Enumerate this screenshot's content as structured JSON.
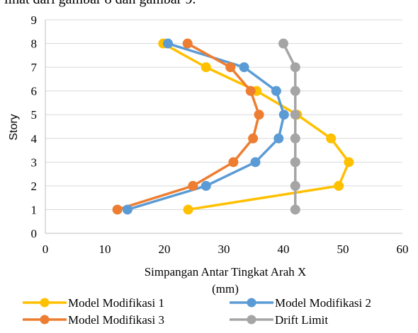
{
  "header_text": "lihat dari gambar 8 dan gambar 9.",
  "chart_data": {
    "type": "line",
    "xlabel_line1": "Simpangan Antar Tingkat Arah X",
    "xlabel_line2": "(mm)",
    "ylabel": "Story",
    "xlim": [
      0,
      60
    ],
    "ylim": [
      0,
      9
    ],
    "xticks": [
      "0",
      "10",
      "20",
      "30",
      "40",
      "50",
      "60"
    ],
    "yticks": [
      "0",
      "1",
      "2",
      "3",
      "4",
      "5",
      "6",
      "7",
      "8",
      "9"
    ],
    "grid": "horizontal",
    "legend_position": "bottom",
    "series": [
      {
        "name": "Model Modifikasi 1",
        "color": "#FFC000",
        "points": [
          [
            24,
            1
          ],
          [
            49.3,
            2
          ],
          [
            51,
            3
          ],
          [
            48,
            4
          ],
          [
            42.3,
            5
          ],
          [
            35.5,
            6
          ],
          [
            27,
            7
          ],
          [
            19.8,
            8
          ]
        ]
      },
      {
        "name": "Model Modifikasi 2",
        "color": "#5B9BD5",
        "points": [
          [
            13.8,
            1
          ],
          [
            27,
            2
          ],
          [
            35.3,
            3
          ],
          [
            39.2,
            4
          ],
          [
            40.1,
            5
          ],
          [
            38.8,
            6
          ],
          [
            33.4,
            7
          ],
          [
            20.6,
            8
          ]
        ]
      },
      {
        "name": "Model Modifikasi 3",
        "color": "#ED7D31",
        "points": [
          [
            12.1,
            1
          ],
          [
            24.8,
            2
          ],
          [
            31.6,
            3
          ],
          [
            34.9,
            4
          ],
          [
            35.9,
            5
          ],
          [
            34.5,
            6
          ],
          [
            31.1,
            7
          ],
          [
            23.9,
            8
          ]
        ]
      },
      {
        "name": "Drift Limit",
        "color": "#A5A5A5",
        "points": [
          [
            42,
            1
          ],
          [
            42,
            2
          ],
          [
            42,
            3
          ],
          [
            42,
            4
          ],
          [
            42,
            5
          ],
          [
            42,
            6
          ],
          [
            42,
            7
          ],
          [
            40,
            8
          ]
        ]
      }
    ]
  }
}
